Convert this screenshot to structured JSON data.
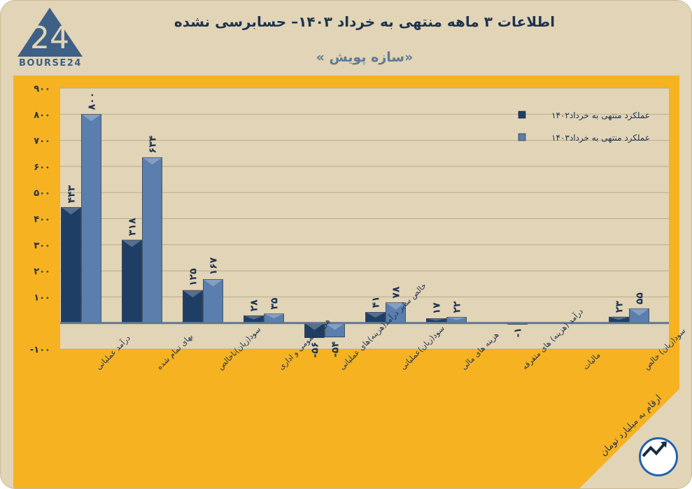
{
  "header": {
    "title": "اطلاعات ۳ ماهه منتهی به خرداد ۱۴۰۳– حسابرسی نشده",
    "subtitle": "«سازه پویش »"
  },
  "logo": {
    "text": "BOURSE24",
    "mark": "24"
  },
  "footnote": "ارقام به میلیارد تومان",
  "colors": {
    "series1": "#1f3e66",
    "series2": "#5a7fae",
    "panel": "#f6b221",
    "plot": "#e2d4b6",
    "zero_line": "#5e7891"
  },
  "chart_data": {
    "type": "bar",
    "title": "",
    "categories": [
      "درآمد عملیاتی",
      "بهای تمام شده",
      "سود(زیان)ناخالص",
      "هزینه عمومی و اداری",
      "خالص سایر درآمد(هزینه)های عملیاتی",
      "سود(زیان)عملیاتی",
      "هزینه های مالی",
      "درآمد (هزینه) های متفرقه",
      "مالیات",
      "سود(زیان) خالص"
    ],
    "series": [
      {
        "name": "عملکرد منتهی به خرداد۱۴۰۲",
        "values": [
          443,
          318,
          125,
          28,
          -56,
          41,
          17,
          0,
          0,
          23
        ],
        "labels": [
          "۴۴۳",
          "۳۱۸",
          "۱۲۵",
          "۲۸",
          "-۵۶",
          "۴۱",
          "۱۷",
          "",
          "",
          "۲۳"
        ]
      },
      {
        "name": "عملکرد منتهی به خرداد۱۴۰۳",
        "values": [
          800,
          634,
          167,
          35,
          -54,
          78,
          22,
          -1,
          0,
          55
        ],
        "labels": [
          "۸۰۰",
          "۶۳۴",
          "۱۶۷",
          "۳۵",
          "-۵۴",
          "۷۸",
          "۲۲",
          "-۱",
          "",
          "۵۵"
        ]
      }
    ],
    "ylim": [
      -100,
      900
    ],
    "yticks": [
      {
        "v": 900,
        "t": "۹۰۰"
      },
      {
        "v": 800,
        "t": "۸۰۰"
      },
      {
        "v": 700,
        "t": "۷۰۰"
      },
      {
        "v": 600,
        "t": "۶۰۰"
      },
      {
        "v": 500,
        "t": "۵۰۰"
      },
      {
        "v": 400,
        "t": "۴۰۰"
      },
      {
        "v": 300,
        "t": "۳۰۰"
      },
      {
        "v": 200,
        "t": "۲۰۰"
      },
      {
        "v": 100,
        "t": "۱۰۰"
      },
      {
        "v": -100,
        "t": "-۱۰۰"
      }
    ],
    "grid": true,
    "legend": "top-right"
  }
}
